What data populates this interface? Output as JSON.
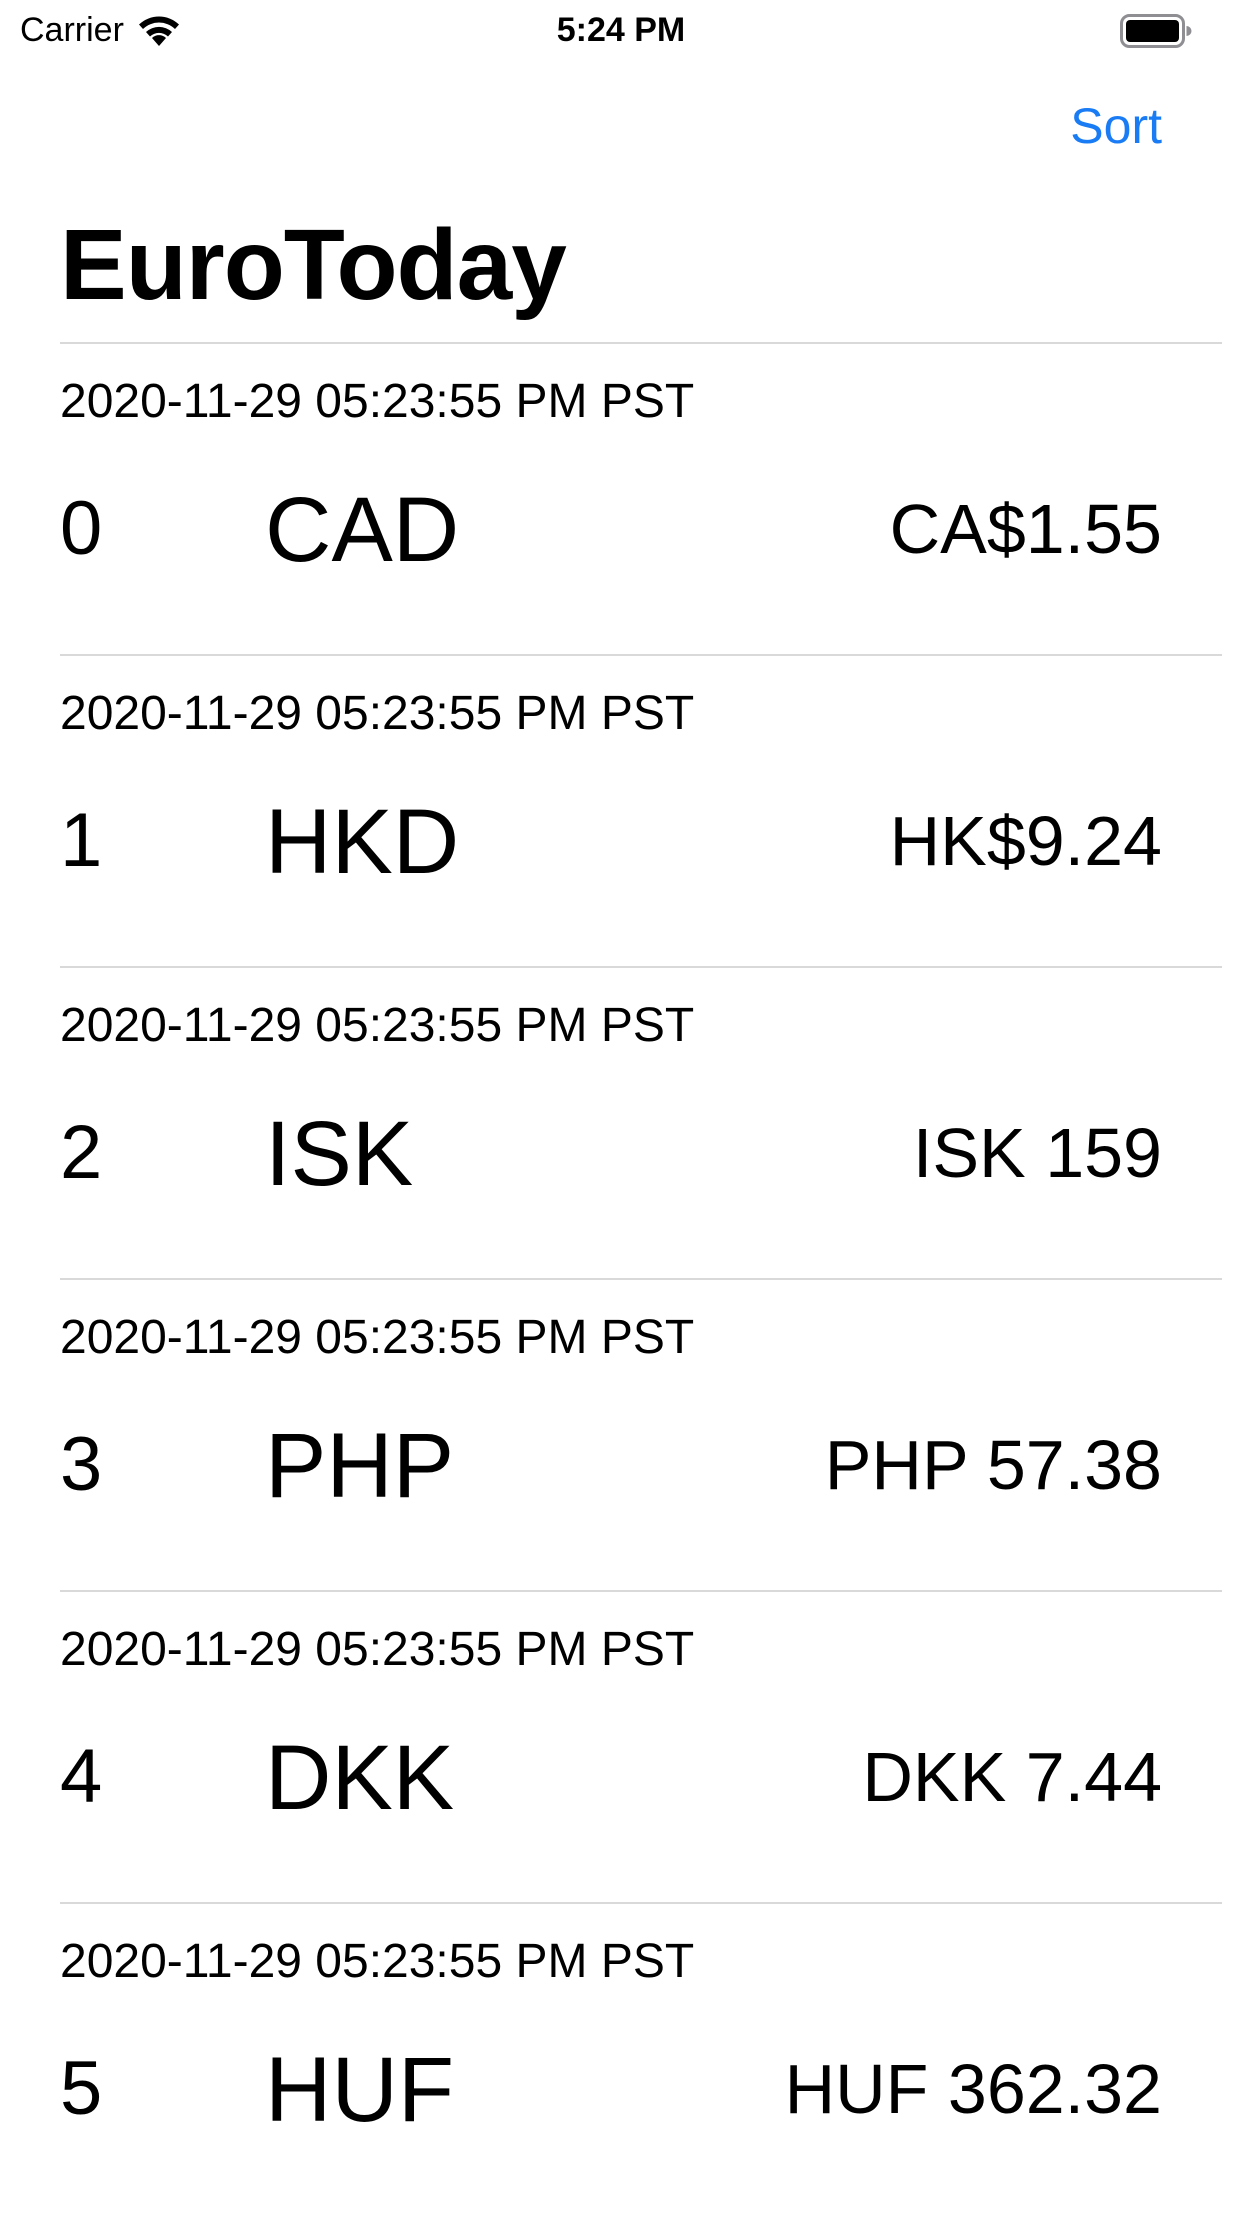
{
  "status_bar": {
    "carrier": "Carrier",
    "time": "5:24 PM",
    "wifi_icon": "wifi-icon",
    "battery_icon": "battery-icon"
  },
  "nav": {
    "sort_label": "Sort",
    "title": "EuroToday",
    "accent_color": "#1a7cf5"
  },
  "rates": [
    {
      "timestamp": "2020-11-29 05:23:55 PM PST",
      "index": "0",
      "code": "CAD",
      "value": "CA$1.55"
    },
    {
      "timestamp": "2020-11-29 05:23:55 PM PST",
      "index": "1",
      "code": "HKD",
      "value": "HK$9.24"
    },
    {
      "timestamp": "2020-11-29 05:23:55 PM PST",
      "index": "2",
      "code": "ISK",
      "value": "ISK 159"
    },
    {
      "timestamp": "2020-11-29 05:23:55 PM PST",
      "index": "3",
      "code": "PHP",
      "value": "PHP 57.38"
    },
    {
      "timestamp": "2020-11-29 05:23:55 PM PST",
      "index": "4",
      "code": "DKK",
      "value": "DKK 7.44"
    },
    {
      "timestamp": "2020-11-29 05:23:55 PM PST",
      "index": "5",
      "code": "HUF",
      "value": "HUF 362.32"
    }
  ]
}
